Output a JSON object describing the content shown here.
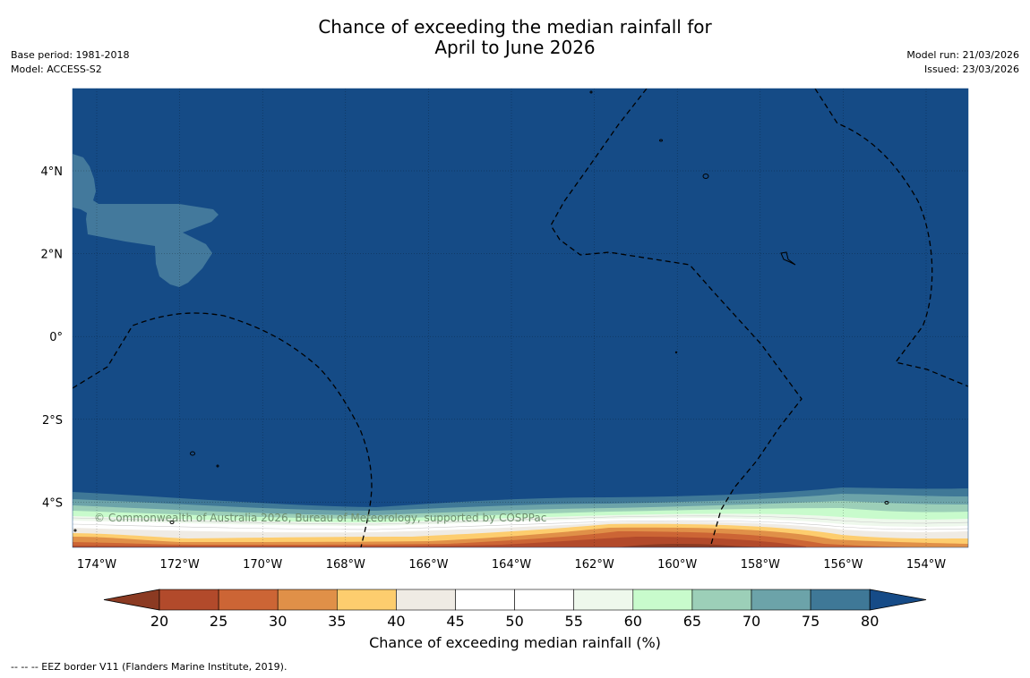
{
  "title": {
    "line1": "Chance of exceeding the median rainfall for",
    "line2": "April to June 2026"
  },
  "meta": {
    "base_period": "Base period: 1981-2018",
    "model": "Model: ACCESS-S2",
    "model_run": "Model run: 21/03/2026",
    "issued": "Issued: 23/03/2026"
  },
  "map": {
    "lon_ticks": [
      "174°W",
      "172°W",
      "170°W",
      "168°W",
      "166°W",
      "164°W",
      "162°W",
      "160°W",
      "158°W",
      "156°W",
      "154°W"
    ],
    "lat_ticks": [
      "4°N",
      "2°N",
      "0°",
      "2°S",
      "4°S"
    ],
    "copyright": "© Commonwealth of Australia 2026, Bureau of Meteorology, supported by COSPPac"
  },
  "colorbar": {
    "ticks": [
      "20",
      "25",
      "30",
      "35",
      "40",
      "45",
      "50",
      "55",
      "60",
      "65",
      "70",
      "75",
      "80"
    ],
    "under_color": "#8b3a22",
    "over_color": "#164b87",
    "colors": [
      "#b24a2b",
      "#cc6535",
      "#e09048",
      "#fdcd6e",
      "#efebe4",
      "#ffffff",
      "#ffffff",
      "#eef8ec",
      "#c8fbcc",
      "#9ccfb8",
      "#6ca3a9",
      "#3f7897"
    ],
    "label": "Chance of exceeding median rainfall (%)"
  },
  "palette": {
    "ocean": "#154b86",
    "light_region": "#43799c"
  },
  "footnote": "--  --  -- EEZ border V11 (Flanders Marine Institute, 2019)."
}
